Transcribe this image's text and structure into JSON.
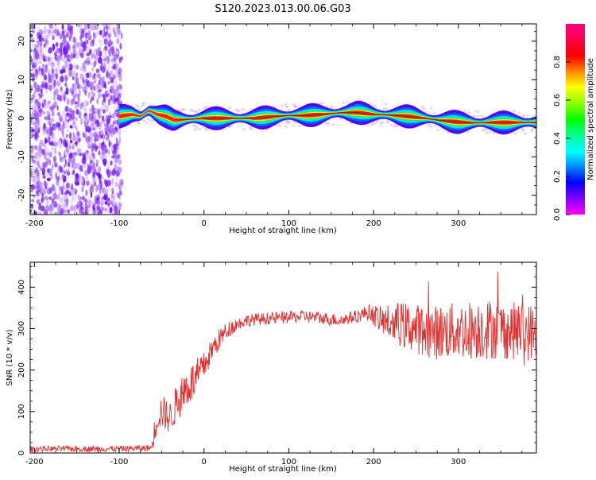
{
  "figure_title": "S120.2023.013.00.06.G03",
  "chart_data": [
    {
      "type": "heatmap",
      "title": "",
      "xlabel": "Height of straight line (km)",
      "ylabel": "Frequency (Hz)",
      "xlim": [
        -205,
        392
      ],
      "ylim": [
        -25,
        24.5
      ],
      "xticks": [
        -200,
        -100,
        0,
        100,
        200,
        300
      ],
      "yticks": [
        -20,
        -10,
        0,
        10,
        20
      ],
      "colorbar": {
        "label": "Normalized spectral amplitude",
        "range": [
          0.0,
          1.0
        ],
        "ticks": [
          0.0,
          0.2,
          0.4,
          0.6,
          0.8
        ],
        "colormap": "gist_rainbow_r"
      },
      "noise_region_x": [
        -205,
        -100
      ],
      "doppler_track": {
        "x": [
          -100,
          -85,
          -75,
          -65,
          -55,
          -45,
          -35,
          -20,
          0,
          30,
          60,
          80,
          100,
          120,
          140,
          160,
          180,
          200,
          220,
          240,
          260,
          280,
          300,
          320,
          340,
          360,
          392
        ],
        "freq_hz": [
          0.5,
          1.0,
          0.5,
          2.0,
          1.0,
          0.5,
          -0.5,
          -0.3,
          0.0,
          0.0,
          0.0,
          0.4,
          0.7,
          0.7,
          1.0,
          1.4,
          1.5,
          1.0,
          0.8,
          0.5,
          0.0,
          -0.6,
          -1.0,
          -1.2,
          -1.1,
          -1.1,
          -1.1
        ]
      }
    },
    {
      "type": "line",
      "title": "",
      "xlabel": "Height of straight line (km)",
      "ylabel": "SNR (10 * v/v)",
      "xlim": [
        -205,
        392
      ],
      "ylim": [
        0,
        460
      ],
      "xticks": [
        -200,
        -100,
        0,
        100,
        200,
        300
      ],
      "yticks": [
        0,
        100,
        200,
        300,
        400
      ],
      "color": "#e3302e",
      "series": [
        {
          "x": [
            -205,
            -150,
            -100,
            -62,
            -60,
            -55,
            -50,
            -40,
            -30,
            -20,
            -10,
            0,
            10,
            20,
            30,
            40,
            50,
            60,
            80,
            100,
            120,
            140,
            160,
            180,
            195,
            210,
            230,
            250,
            270,
            300,
            330,
            360,
            392
          ],
          "y": [
            10,
            10,
            10,
            12,
            35,
            90,
            100,
            85,
            130,
            160,
            175,
            210,
            250,
            280,
            300,
            312,
            320,
            322,
            325,
            327,
            330,
            325,
            320,
            330,
            340,
            318,
            310,
            300,
            290,
            295,
            300,
            295,
            290
          ],
          "noise_amplitude": [
            7,
            7,
            7,
            8,
            25,
            40,
            40,
            40,
            50,
            50,
            50,
            35,
            30,
            25,
            20,
            15,
            15,
            15,
            15,
            15,
            15,
            15,
            15,
            15,
            20,
            35,
            55,
            60,
            65,
            70,
            75,
            70,
            70
          ]
        }
      ]
    }
  ]
}
